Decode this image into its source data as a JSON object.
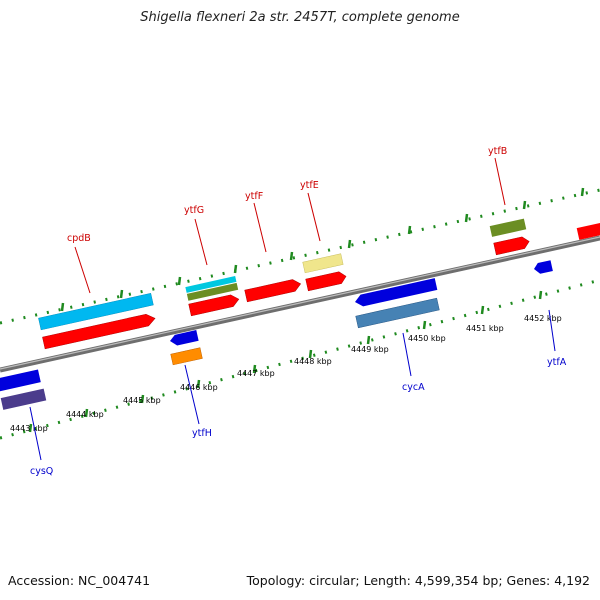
{
  "title": "Shigella flexneri 2a str. 2457T, complete genome",
  "accession": "Accession: NC_004741",
  "topology": "Topology: circular; Length: 4,599,354 bp; Genes: 4,192",
  "colors": {
    "backbone": "#8a8a8a",
    "tick": "#1f8a1f",
    "top_label": "#cc0000",
    "bottom_label": "#0000cc"
  },
  "ticks": [
    "4443 kbp",
    "4444 kbp",
    "4445 kbp",
    "4446 kbp",
    "4447 kbp",
    "4448 kbp",
    "4449 kbp",
    "4450 kbp",
    "4451 kbp",
    "4452 kbp"
  ],
  "top_genes": [
    {
      "id": "cpdB",
      "label": "cpdB",
      "color": "#ff0000"
    },
    {
      "id": "ytfG",
      "label": "ytfG",
      "color": "#ff0000"
    },
    {
      "id": "ytfF",
      "label": "ytfF",
      "color": "#ff0000"
    },
    {
      "id": "ytfE",
      "label": "ytfE",
      "color": "#ff0000"
    },
    {
      "id": "ytfB",
      "label": "ytfB",
      "color": "#ff0000"
    }
  ],
  "bottom_genes": [
    {
      "id": "cysQ",
      "label": "cysQ",
      "color": "#0000dd"
    },
    {
      "id": "ytfH",
      "label": "ytfH",
      "color": "#0000dd"
    },
    {
      "id": "cycA",
      "label": "cycA",
      "color": "#0000dd"
    },
    {
      "id": "ytfA",
      "label": "ytfA",
      "color": "#0000dd"
    }
  ]
}
